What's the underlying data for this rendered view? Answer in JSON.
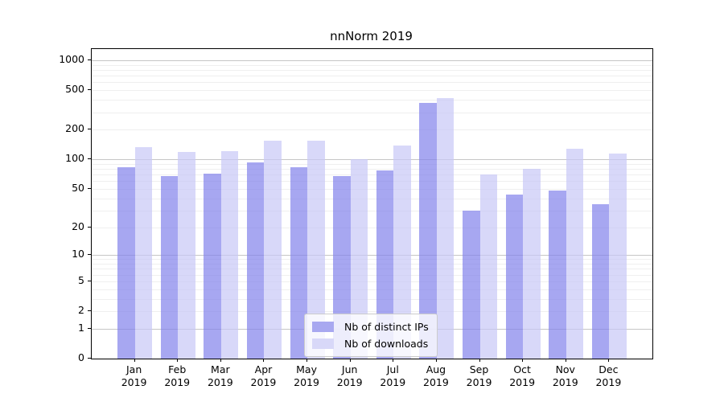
{
  "chart_data": {
    "type": "bar",
    "title": "nnNorm 2019",
    "categories": [
      "Jan",
      "Feb",
      "Mar",
      "Apr",
      "May",
      "Jun",
      "Jul",
      "Aug",
      "Sep",
      "Oct",
      "Nov",
      "Dec"
    ],
    "category_year": "2019",
    "series": [
      {
        "name": "Nb of distinct IPs",
        "color": "rgba(130,130,235,0.7)",
        "swatch": "#a8a8f0",
        "values": [
          83,
          67,
          72,
          94,
          83,
          68,
          77,
          370,
          30,
          44,
          48,
          35
        ]
      },
      {
        "name": "Nb of downloads",
        "color": "rgba(200,200,246,0.7)",
        "swatch": "#d8d8f8",
        "values": [
          133,
          118,
          121,
          155,
          155,
          100,
          139,
          415,
          70,
          80,
          128,
          114
        ]
      }
    ],
    "yscale": "log1p",
    "yticks": [
      0,
      1,
      2,
      5,
      10,
      20,
      50,
      100,
      200,
      500,
      1000
    ],
    "ylim": [
      0,
      1300
    ],
    "grid": true,
    "legend_position": "lower center",
    "colors": {
      "grid_minor": "#efefef",
      "grid_major": "#c6c6c6",
      "axis": "#000000",
      "legend_border": "#cccccc"
    }
  }
}
